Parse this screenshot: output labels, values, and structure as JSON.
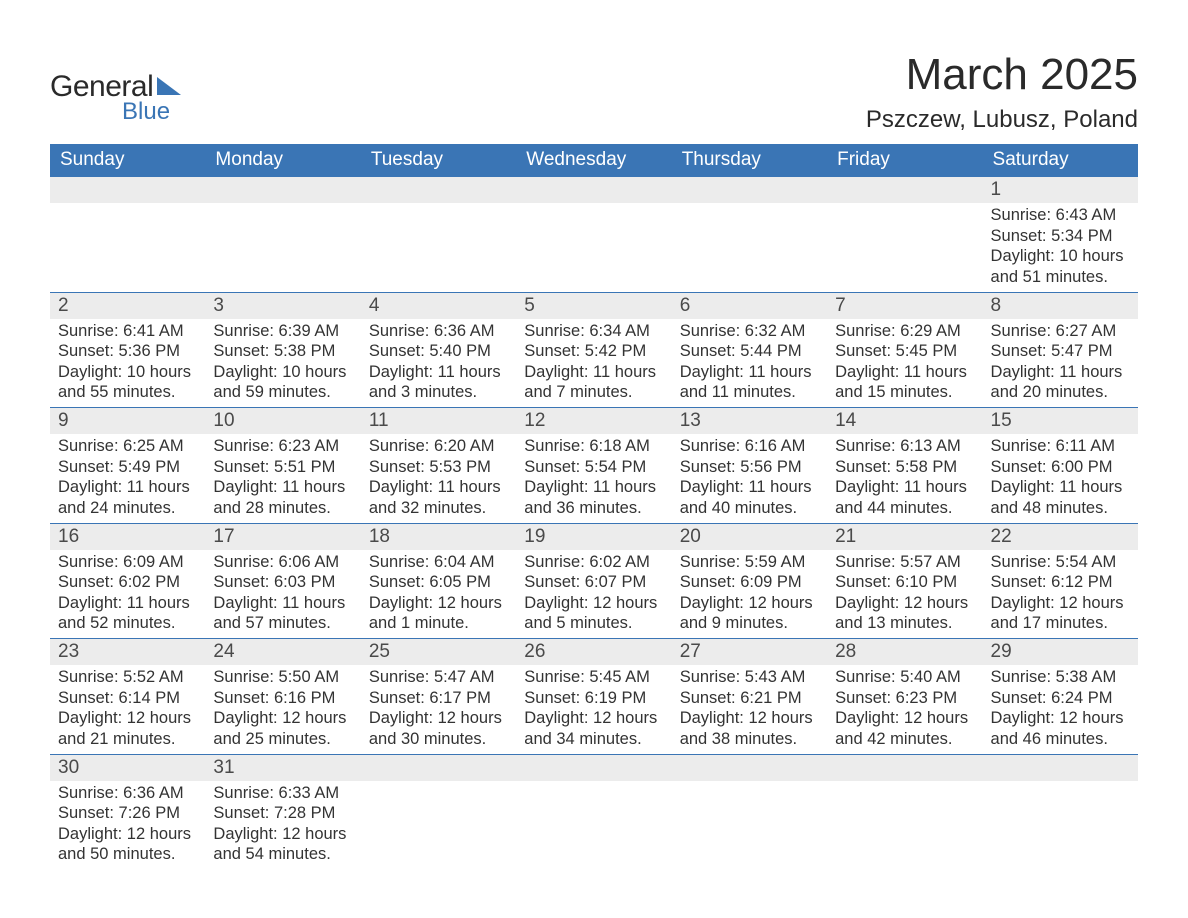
{
  "brand": {
    "word1": "General",
    "word2": "Blue"
  },
  "header": {
    "title": "March 2025",
    "location": "Pszczew, Lubusz, Poland"
  },
  "colors": {
    "header_bg": "#3a75b5",
    "header_text": "#ffffff",
    "daynum_bg": "#ececec",
    "row_divider": "#3a75b5",
    "body_text": "#333333"
  },
  "daynames": [
    "Sunday",
    "Monday",
    "Tuesday",
    "Wednesday",
    "Thursday",
    "Friday",
    "Saturday"
  ],
  "weeks": [
    [
      {
        "day": "",
        "sunrise": "",
        "sunset": "",
        "daylight1": "",
        "daylight2": ""
      },
      {
        "day": "",
        "sunrise": "",
        "sunset": "",
        "daylight1": "",
        "daylight2": ""
      },
      {
        "day": "",
        "sunrise": "",
        "sunset": "",
        "daylight1": "",
        "daylight2": ""
      },
      {
        "day": "",
        "sunrise": "",
        "sunset": "",
        "daylight1": "",
        "daylight2": ""
      },
      {
        "day": "",
        "sunrise": "",
        "sunset": "",
        "daylight1": "",
        "daylight2": ""
      },
      {
        "day": "",
        "sunrise": "",
        "sunset": "",
        "daylight1": "",
        "daylight2": ""
      },
      {
        "day": "1",
        "sunrise": "Sunrise: 6:43 AM",
        "sunset": "Sunset: 5:34 PM",
        "daylight1": "Daylight: 10 hours",
        "daylight2": "and 51 minutes."
      }
    ],
    [
      {
        "day": "2",
        "sunrise": "Sunrise: 6:41 AM",
        "sunset": "Sunset: 5:36 PM",
        "daylight1": "Daylight: 10 hours",
        "daylight2": "and 55 minutes."
      },
      {
        "day": "3",
        "sunrise": "Sunrise: 6:39 AM",
        "sunset": "Sunset: 5:38 PM",
        "daylight1": "Daylight: 10 hours",
        "daylight2": "and 59 minutes."
      },
      {
        "day": "4",
        "sunrise": "Sunrise: 6:36 AM",
        "sunset": "Sunset: 5:40 PM",
        "daylight1": "Daylight: 11 hours",
        "daylight2": "and 3 minutes."
      },
      {
        "day": "5",
        "sunrise": "Sunrise: 6:34 AM",
        "sunset": "Sunset: 5:42 PM",
        "daylight1": "Daylight: 11 hours",
        "daylight2": "and 7 minutes."
      },
      {
        "day": "6",
        "sunrise": "Sunrise: 6:32 AM",
        "sunset": "Sunset: 5:44 PM",
        "daylight1": "Daylight: 11 hours",
        "daylight2": "and 11 minutes."
      },
      {
        "day": "7",
        "sunrise": "Sunrise: 6:29 AM",
        "sunset": "Sunset: 5:45 PM",
        "daylight1": "Daylight: 11 hours",
        "daylight2": "and 15 minutes."
      },
      {
        "day": "8",
        "sunrise": "Sunrise: 6:27 AM",
        "sunset": "Sunset: 5:47 PM",
        "daylight1": "Daylight: 11 hours",
        "daylight2": "and 20 minutes."
      }
    ],
    [
      {
        "day": "9",
        "sunrise": "Sunrise: 6:25 AM",
        "sunset": "Sunset: 5:49 PM",
        "daylight1": "Daylight: 11 hours",
        "daylight2": "and 24 minutes."
      },
      {
        "day": "10",
        "sunrise": "Sunrise: 6:23 AM",
        "sunset": "Sunset: 5:51 PM",
        "daylight1": "Daylight: 11 hours",
        "daylight2": "and 28 minutes."
      },
      {
        "day": "11",
        "sunrise": "Sunrise: 6:20 AM",
        "sunset": "Sunset: 5:53 PM",
        "daylight1": "Daylight: 11 hours",
        "daylight2": "and 32 minutes."
      },
      {
        "day": "12",
        "sunrise": "Sunrise: 6:18 AM",
        "sunset": "Sunset: 5:54 PM",
        "daylight1": "Daylight: 11 hours",
        "daylight2": "and 36 minutes."
      },
      {
        "day": "13",
        "sunrise": "Sunrise: 6:16 AM",
        "sunset": "Sunset: 5:56 PM",
        "daylight1": "Daylight: 11 hours",
        "daylight2": "and 40 minutes."
      },
      {
        "day": "14",
        "sunrise": "Sunrise: 6:13 AM",
        "sunset": "Sunset: 5:58 PM",
        "daylight1": "Daylight: 11 hours",
        "daylight2": "and 44 minutes."
      },
      {
        "day": "15",
        "sunrise": "Sunrise: 6:11 AM",
        "sunset": "Sunset: 6:00 PM",
        "daylight1": "Daylight: 11 hours",
        "daylight2": "and 48 minutes."
      }
    ],
    [
      {
        "day": "16",
        "sunrise": "Sunrise: 6:09 AM",
        "sunset": "Sunset: 6:02 PM",
        "daylight1": "Daylight: 11 hours",
        "daylight2": "and 52 minutes."
      },
      {
        "day": "17",
        "sunrise": "Sunrise: 6:06 AM",
        "sunset": "Sunset: 6:03 PM",
        "daylight1": "Daylight: 11 hours",
        "daylight2": "and 57 minutes."
      },
      {
        "day": "18",
        "sunrise": "Sunrise: 6:04 AM",
        "sunset": "Sunset: 6:05 PM",
        "daylight1": "Daylight: 12 hours",
        "daylight2": "and 1 minute."
      },
      {
        "day": "19",
        "sunrise": "Sunrise: 6:02 AM",
        "sunset": "Sunset: 6:07 PM",
        "daylight1": "Daylight: 12 hours",
        "daylight2": "and 5 minutes."
      },
      {
        "day": "20",
        "sunrise": "Sunrise: 5:59 AM",
        "sunset": "Sunset: 6:09 PM",
        "daylight1": "Daylight: 12 hours",
        "daylight2": "and 9 minutes."
      },
      {
        "day": "21",
        "sunrise": "Sunrise: 5:57 AM",
        "sunset": "Sunset: 6:10 PM",
        "daylight1": "Daylight: 12 hours",
        "daylight2": "and 13 minutes."
      },
      {
        "day": "22",
        "sunrise": "Sunrise: 5:54 AM",
        "sunset": "Sunset: 6:12 PM",
        "daylight1": "Daylight: 12 hours",
        "daylight2": "and 17 minutes."
      }
    ],
    [
      {
        "day": "23",
        "sunrise": "Sunrise: 5:52 AM",
        "sunset": "Sunset: 6:14 PM",
        "daylight1": "Daylight: 12 hours",
        "daylight2": "and 21 minutes."
      },
      {
        "day": "24",
        "sunrise": "Sunrise: 5:50 AM",
        "sunset": "Sunset: 6:16 PM",
        "daylight1": "Daylight: 12 hours",
        "daylight2": "and 25 minutes."
      },
      {
        "day": "25",
        "sunrise": "Sunrise: 5:47 AM",
        "sunset": "Sunset: 6:17 PM",
        "daylight1": "Daylight: 12 hours",
        "daylight2": "and 30 minutes."
      },
      {
        "day": "26",
        "sunrise": "Sunrise: 5:45 AM",
        "sunset": "Sunset: 6:19 PM",
        "daylight1": "Daylight: 12 hours",
        "daylight2": "and 34 minutes."
      },
      {
        "day": "27",
        "sunrise": "Sunrise: 5:43 AM",
        "sunset": "Sunset: 6:21 PM",
        "daylight1": "Daylight: 12 hours",
        "daylight2": "and 38 minutes."
      },
      {
        "day": "28",
        "sunrise": "Sunrise: 5:40 AM",
        "sunset": "Sunset: 6:23 PM",
        "daylight1": "Daylight: 12 hours",
        "daylight2": "and 42 minutes."
      },
      {
        "day": "29",
        "sunrise": "Sunrise: 5:38 AM",
        "sunset": "Sunset: 6:24 PM",
        "daylight1": "Daylight: 12 hours",
        "daylight2": "and 46 minutes."
      }
    ],
    [
      {
        "day": "30",
        "sunrise": "Sunrise: 6:36 AM",
        "sunset": "Sunset: 7:26 PM",
        "daylight1": "Daylight: 12 hours",
        "daylight2": "and 50 minutes."
      },
      {
        "day": "31",
        "sunrise": "Sunrise: 6:33 AM",
        "sunset": "Sunset: 7:28 PM",
        "daylight1": "Daylight: 12 hours",
        "daylight2": "and 54 minutes."
      },
      {
        "day": "",
        "sunrise": "",
        "sunset": "",
        "daylight1": "",
        "daylight2": ""
      },
      {
        "day": "",
        "sunrise": "",
        "sunset": "",
        "daylight1": "",
        "daylight2": ""
      },
      {
        "day": "",
        "sunrise": "",
        "sunset": "",
        "daylight1": "",
        "daylight2": ""
      },
      {
        "day": "",
        "sunrise": "",
        "sunset": "",
        "daylight1": "",
        "daylight2": ""
      },
      {
        "day": "",
        "sunrise": "",
        "sunset": "",
        "daylight1": "",
        "daylight2": ""
      }
    ]
  ]
}
